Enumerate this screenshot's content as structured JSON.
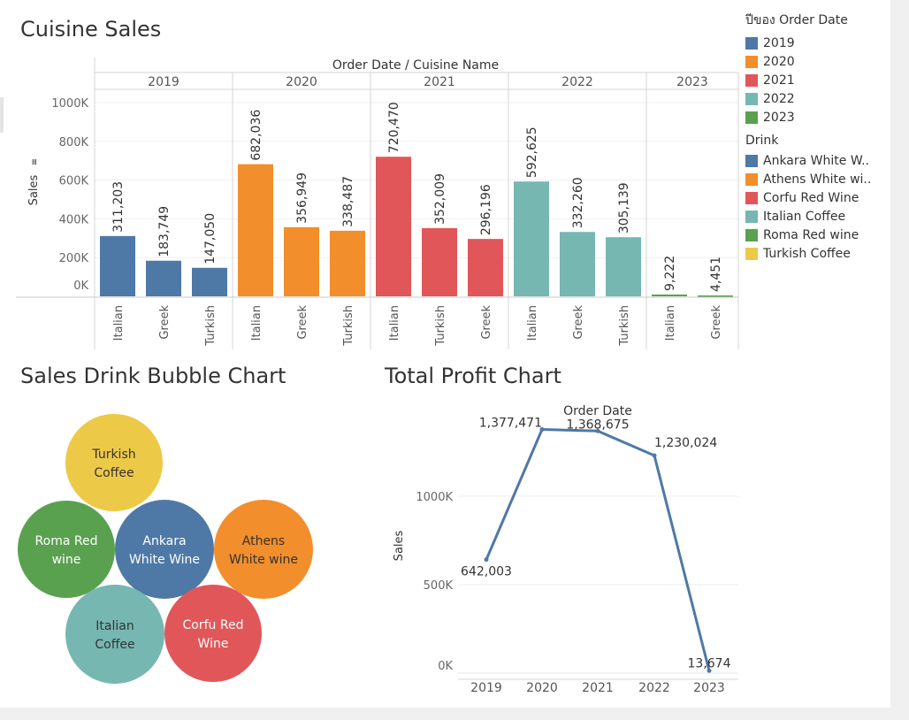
{
  "titles": {
    "cuisine_sales": "Cuisine Sales",
    "bubble_chart": "Sales Drink Bubble Chart",
    "profit_chart": "Total Profit Chart"
  },
  "legend": {
    "year_title": "ปีของ Order Date",
    "year_items": [
      {
        "label": "2019",
        "color": "#4e79a7"
      },
      {
        "label": "2020",
        "color": "#f28e2b"
      },
      {
        "label": "2021",
        "color": "#e15759"
      },
      {
        "label": "2022",
        "color": "#76b7b2"
      },
      {
        "label": "2023",
        "color": "#59a14f"
      }
    ],
    "drink_title": "Drink",
    "drink_items": [
      {
        "label": "Ankara White W..",
        "color": "#4e79a7"
      },
      {
        "label": "Athens White wi..",
        "color": "#f28e2b"
      },
      {
        "label": "Corfu Red Wine",
        "color": "#e15759"
      },
      {
        "label": "Italian Coffee",
        "color": "#76b7b2"
      },
      {
        "label": "Roma Red wine",
        "color": "#59a14f"
      },
      {
        "label": "Turkish Coffee",
        "color": "#edc948"
      }
    ]
  },
  "chart_data": [
    {
      "type": "bar",
      "title": "Cuisine Sales",
      "header": "Order Date  /  Cuisine Name",
      "ylabel": "Sales",
      "ylim": [
        0,
        1000000
      ],
      "yticks": [
        {
          "value": 0,
          "label": "0K"
        },
        {
          "value": 200000,
          "label": "200K"
        },
        {
          "value": 400000,
          "label": "400K"
        },
        {
          "value": 600000,
          "label": "600K"
        },
        {
          "value": 800000,
          "label": "800K"
        },
        {
          "value": 1000000,
          "label": "1000K"
        }
      ],
      "grid": true,
      "groups": [
        {
          "year": "2019",
          "color": "#4e79a7",
          "bars": [
            {
              "category": "Italian",
              "value": 311203,
              "label": "311,203"
            },
            {
              "category": "Greek",
              "value": 183749,
              "label": "183,749"
            },
            {
              "category": "Turkish",
              "value": 147050,
              "label": "147,050"
            }
          ]
        },
        {
          "year": "2020",
          "color": "#f28e2b",
          "bars": [
            {
              "category": "Italian",
              "value": 682036,
              "label": "682,036"
            },
            {
              "category": "Greek",
              "value": 356949,
              "label": "356,949"
            },
            {
              "category": "Turkish",
              "value": 338487,
              "label": "338,487"
            }
          ]
        },
        {
          "year": "2021",
          "color": "#e15759",
          "bars": [
            {
              "category": "Italian",
              "value": 720470,
              "label": "720,470"
            },
            {
              "category": "Turkish",
              "value": 352009,
              "label": "352,009"
            },
            {
              "category": "Greek",
              "value": 296196,
              "label": "296,196"
            }
          ]
        },
        {
          "year": "2022",
          "color": "#76b7b2",
          "bars": [
            {
              "category": "Italian",
              "value": 592625,
              "label": "592,625"
            },
            {
              "category": "Greek",
              "value": 332260,
              "label": "332,260"
            },
            {
              "category": "Turkish",
              "value": 305139,
              "label": "305,139"
            }
          ]
        },
        {
          "year": "2023",
          "color": "#59a14f",
          "bars": [
            {
              "category": "Italian",
              "value": 9222,
              "label": "9,222"
            },
            {
              "category": "Greek",
              "value": 4451,
              "label": "4,451"
            }
          ]
        }
      ]
    },
    {
      "type": "bubble",
      "title": "Sales Drink Bubble Chart",
      "bubbles": [
        {
          "name": "Turkish Coffee",
          "lines": [
            "Turkish",
            "Coffee"
          ],
          "color": "#edc948",
          "text_color": "#333333"
        },
        {
          "name": "Roma Red wine",
          "lines": [
            "Roma Red",
            "wine"
          ],
          "color": "#59a14f",
          "text_color": "#ffffff"
        },
        {
          "name": "Ankara White Wine",
          "lines": [
            "Ankara",
            "White Wine"
          ],
          "color": "#4e79a7",
          "text_color": "#ffffff"
        },
        {
          "name": "Athens White wine",
          "lines": [
            "Athens",
            "White wine"
          ],
          "color": "#f28e2b",
          "text_color": "#333333"
        },
        {
          "name": "Italian Coffee",
          "lines": [
            "Italian",
            "Coffee"
          ],
          "color": "#76b7b2",
          "text_color": "#333333"
        },
        {
          "name": "Corfu Red Wine",
          "lines": [
            "Corfu Red",
            "Wine"
          ],
          "color": "#e15759",
          "text_color": "#ffffff"
        }
      ]
    },
    {
      "type": "line",
      "title": "Total Profit Chart",
      "header": "Order Date",
      "ylabel": "Sales",
      "ylim": [
        0,
        1400000
      ],
      "yticks": [
        {
          "value": 0,
          "label": "0K"
        },
        {
          "value": 500000,
          "label": "500K"
        },
        {
          "value": 1000000,
          "label": "1000K"
        }
      ],
      "x": [
        "2019",
        "2020",
        "2021",
        "2022",
        "2023"
      ],
      "series": [
        {
          "values": [
            642003,
            1377471,
            1368675,
            1230024,
            13674
          ],
          "labels": [
            "642,003",
            "1,377,471",
            "1,368,675",
            "1,230,024",
            "13,674"
          ],
          "color": "#4e79a7"
        }
      ]
    }
  ]
}
